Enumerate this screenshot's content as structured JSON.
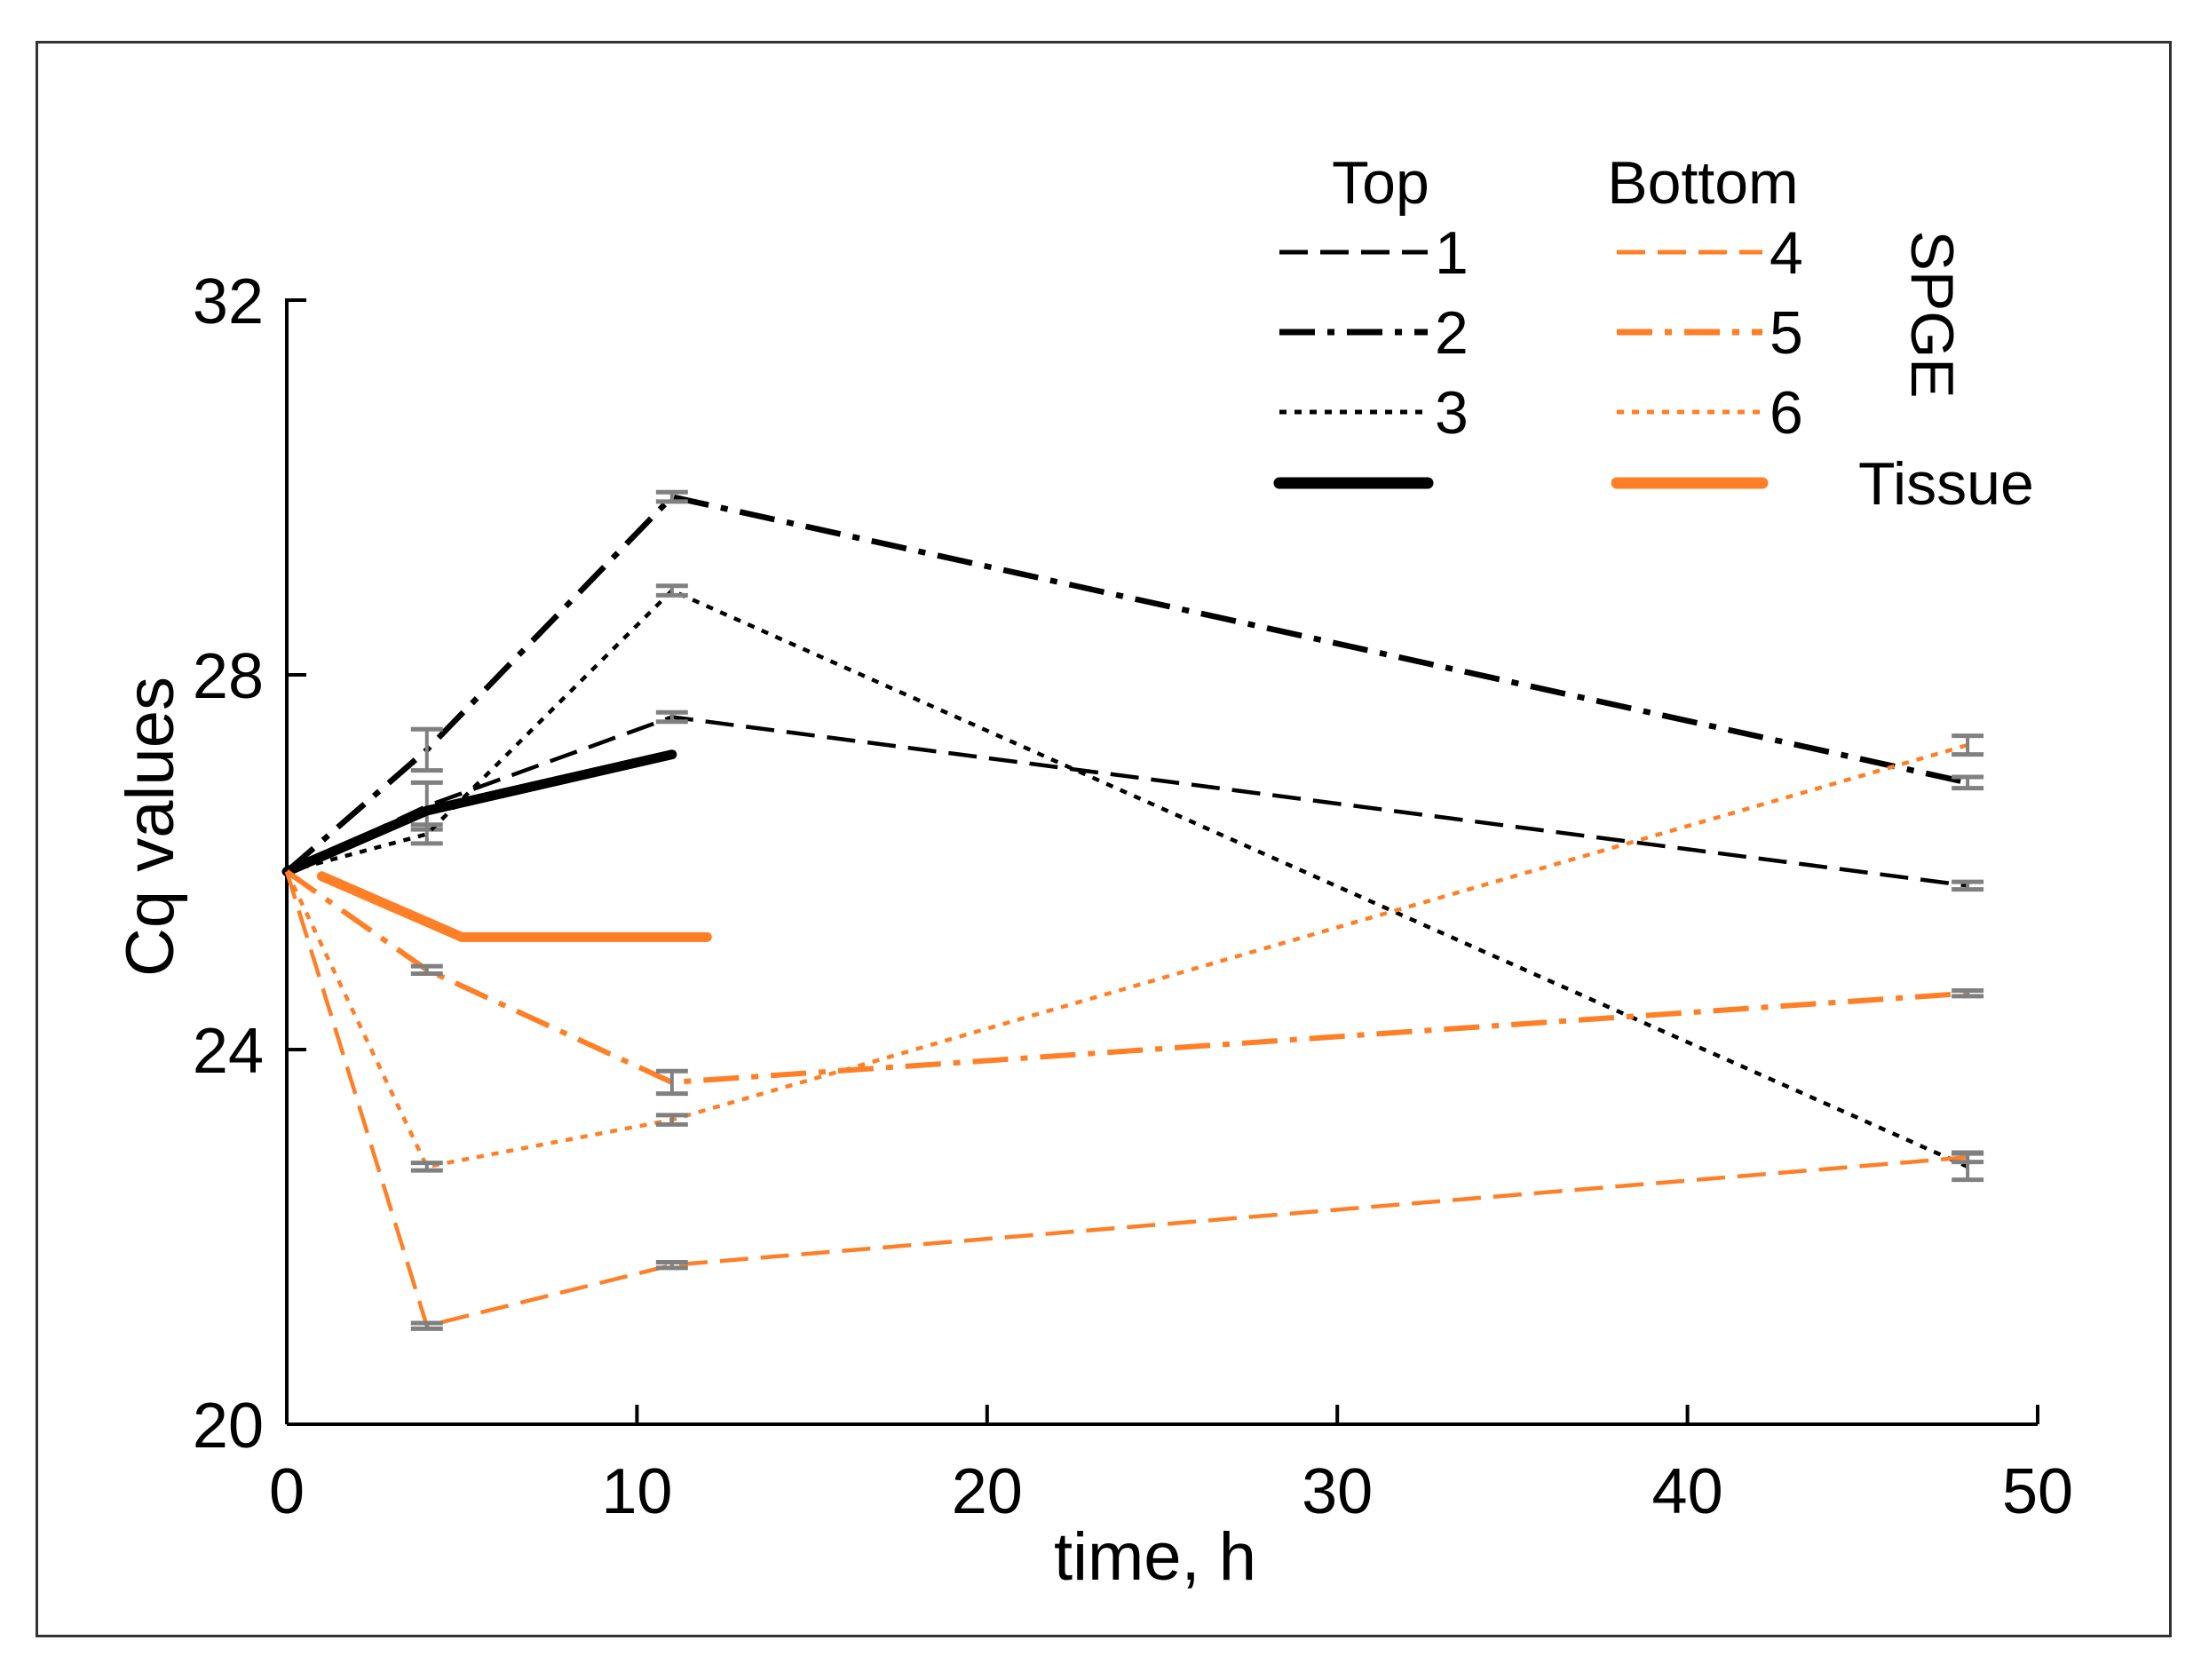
{
  "chart_data": {
    "type": "line",
    "title": "",
    "xlabel": "time, h",
    "ylabel": "Cq values",
    "xlim": [
      0,
      50
    ],
    "ylim": [
      20,
      32
    ],
    "xticks": [
      0,
      10,
      20,
      30,
      40,
      50
    ],
    "yticks": [
      20,
      24,
      28,
      32
    ],
    "grid": false,
    "legend": {
      "placement": "top-right",
      "group_headers": [
        "Top",
        "Bottom"
      ],
      "side_label": "SPGE",
      "tissue_label": "Tissue"
    },
    "colors": {
      "top": "#000000",
      "bottom": "#FF7F27",
      "error_bar": "#808080"
    },
    "series": [
      {
        "name": "1",
        "group": "Top",
        "dash": "dashed",
        "color": "#000000",
        "x": [
          0,
          4,
          11,
          48
        ],
        "values": [
          25.9,
          26.6,
          27.55,
          25.75
        ],
        "errors": [
          0,
          0.25,
          0.05,
          0.04
        ]
      },
      {
        "name": "2",
        "group": "Top",
        "dash": "dash-dot",
        "color": "#000000",
        "x": [
          0,
          4,
          11,
          48
        ],
        "values": [
          25.9,
          27.2,
          29.9,
          26.85
        ],
        "errors": [
          0,
          0.22,
          0.05,
          0.06
        ]
      },
      {
        "name": "3",
        "group": "Top",
        "dash": "dotted",
        "color": "#000000",
        "x": [
          0,
          4,
          11,
          48
        ],
        "values": [
          25.9,
          26.3,
          28.9,
          22.75
        ],
        "errors": [
          0,
          0.1,
          0.05,
          0.14
        ]
      },
      {
        "name": "Tissue (Top)",
        "group": "Top",
        "dash": "solid",
        "color": "#000000",
        "x": [
          0,
          4,
          11
        ],
        "values": [
          25.9,
          26.55,
          27.15
        ],
        "errors": []
      },
      {
        "name": "4",
        "group": "Bottom",
        "dash": "dashed",
        "color": "#FF7F27",
        "x": [
          0,
          4,
          11,
          48
        ],
        "values": [
          25.9,
          21.05,
          21.7,
          22.85
        ],
        "errors": [
          0,
          0.03,
          0.03,
          0.05
        ]
      },
      {
        "name": "5",
        "group": "Bottom",
        "dash": "dash-dot",
        "color": "#FF7F27",
        "x": [
          0,
          4,
          11,
          48
        ],
        "values": [
          25.9,
          24.85,
          23.65,
          24.6
        ],
        "errors": [
          0,
          0.04,
          0.12,
          0.03
        ]
      },
      {
        "name": "6",
        "group": "Bottom",
        "dash": "dotted",
        "color": "#FF7F27",
        "x": [
          0,
          4,
          11,
          48
        ],
        "values": [
          25.9,
          22.75,
          23.25,
          27.25
        ],
        "errors": [
          0,
          0.04,
          0.05,
          0.1
        ]
      },
      {
        "name": "Tissue (Bottom)",
        "group": "Bottom",
        "dash": "solid",
        "color": "#FF7F27",
        "x": [
          1,
          5,
          12
        ],
        "values": [
          25.85,
          25.2,
          25.2
        ],
        "errors": []
      }
    ]
  }
}
